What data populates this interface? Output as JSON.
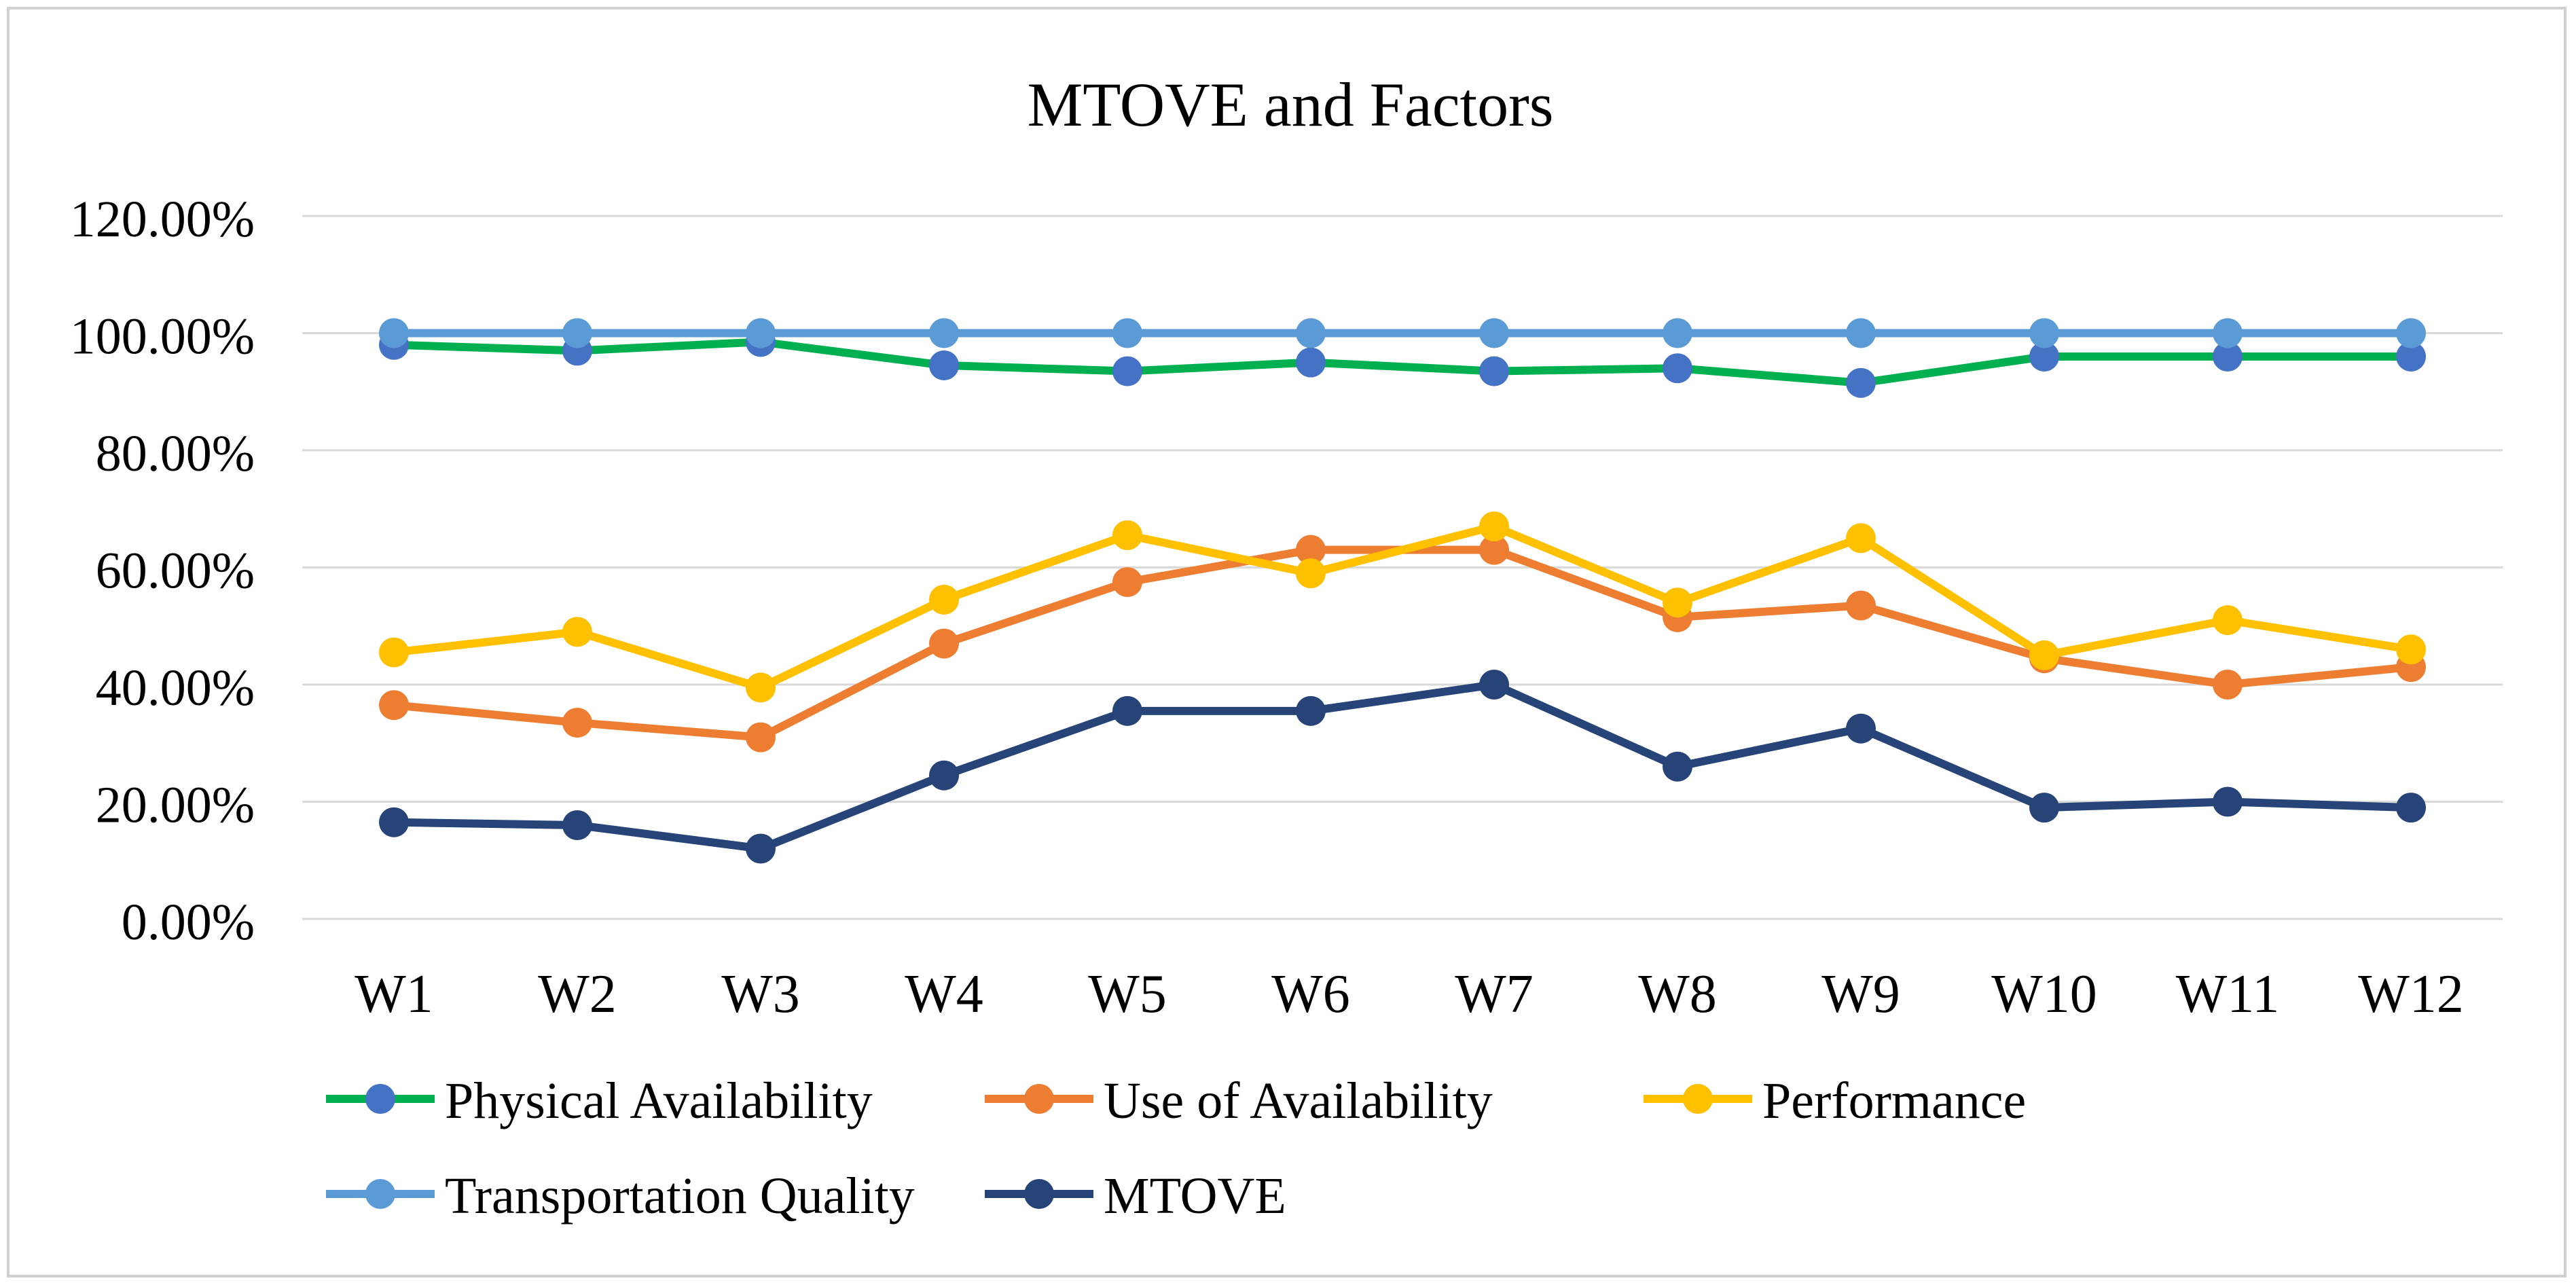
{
  "chart_data": {
    "type": "line",
    "title": "MTOVE and Factors",
    "xlabel": "",
    "ylabel": "",
    "categories": [
      "W1",
      "W2",
      "W3",
      "W4",
      "W5",
      "W6",
      "W7",
      "W8",
      "W9",
      "W10",
      "W11",
      "W12"
    ],
    "ylim": [
      0,
      1.2
    ],
    "yticks": [
      0,
      0.2,
      0.4,
      0.6,
      0.8,
      1.0,
      1.2
    ],
    "ytick_labels": [
      "0.00%",
      "20.00%",
      "40.00%",
      "60.00%",
      "80.00%",
      "100.00%",
      "120.00%"
    ],
    "grid": true,
    "legend_position": "bottom",
    "series": [
      {
        "name": "Physical Availability",
        "line_color": "#00b050",
        "marker_color": "#4472c4",
        "values": [
          0.98,
          0.97,
          0.985,
          0.945,
          0.935,
          0.95,
          0.935,
          0.94,
          0.915,
          0.96,
          0.96,
          0.96
        ]
      },
      {
        "name": "Use of Availability",
        "line_color": "#ed7d31",
        "marker_color": "#ed7d31",
        "values": [
          0.365,
          0.335,
          0.31,
          0.47,
          0.575,
          0.63,
          0.63,
          0.515,
          0.535,
          0.445,
          0.4,
          0.43
        ]
      },
      {
        "name": "Performance",
        "line_color": "#ffc000",
        "marker_color": "#ffc000",
        "values": [
          0.455,
          0.49,
          0.395,
          0.545,
          0.655,
          0.59,
          0.67,
          0.54,
          0.65,
          0.45,
          0.51,
          0.46
        ]
      },
      {
        "name": "Transportation Quality",
        "line_color": "#5b9bd5",
        "marker_color": "#5b9bd5",
        "values": [
          1.0,
          1.0,
          1.0,
          1.0,
          1.0,
          1.0,
          1.0,
          1.0,
          1.0,
          1.0,
          1.0,
          1.0
        ]
      },
      {
        "name": "MTOVE",
        "line_color": "#264478",
        "marker_color": "#264478",
        "values": [
          0.165,
          0.16,
          0.12,
          0.245,
          0.355,
          0.355,
          0.4,
          0.26,
          0.325,
          0.19,
          0.2,
          0.19
        ]
      }
    ]
  }
}
